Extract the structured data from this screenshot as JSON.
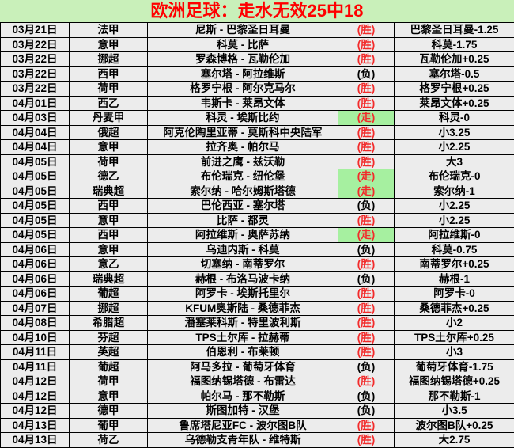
{
  "title": "欧洲足球：走水无效25中18",
  "colors": {
    "title_bg": "#c9f0ba",
    "title_text": "#ff0000",
    "row_bg": "#ececec",
    "push_bg": "#a6f0a0",
    "result_win": "#f22b2b",
    "result_lose": "#000000",
    "border": "#000000"
  },
  "table": {
    "rows": [
      {
        "date": "03月21日",
        "league": "法甲",
        "match": "尼斯 - 巴黎圣日耳曼",
        "result": "(胜)",
        "status": "win",
        "pick": "巴黎圣日耳曼-1.25"
      },
      {
        "date": "03月22日",
        "league": "意甲",
        "match": "科莫 - 比萨",
        "result": "(胜)",
        "status": "win",
        "pick": "科莫-1.75"
      },
      {
        "date": "03月22日",
        "league": "挪超",
        "match": "罗森博格 - 瓦勒伦加",
        "result": "(胜)",
        "status": "win",
        "pick": "瓦勒伦加+0.25"
      },
      {
        "date": "03月22日",
        "league": "西甲",
        "match": "塞尔塔 - 阿拉维斯",
        "result": "(负)",
        "status": "lose",
        "pick": "塞尔塔-0.5"
      },
      {
        "date": "03月22日",
        "league": "荷甲",
        "match": "格罗宁根 - 阿尔克马尔",
        "result": "(胜)",
        "status": "win",
        "pick": "格罗宁根+0.25"
      },
      {
        "date": "04月01日",
        "league": "西乙",
        "match": "韦斯卡 - 莱昂文体",
        "result": "(胜)",
        "status": "win",
        "pick": "莱昂文体+0.25"
      },
      {
        "date": "04月03日",
        "league": "丹麦甲",
        "match": "科灵 - 埃斯比约",
        "result": "(走)",
        "status": "push",
        "pick": "科灵-0"
      },
      {
        "date": "04月04日",
        "league": "俄超",
        "match": "阿克伦陶里亚蒂 - 莫斯科中央陆军",
        "result": "(胜)",
        "status": "win",
        "pick": "小3.25"
      },
      {
        "date": "04月04日",
        "league": "意甲",
        "match": "拉齐奥 - 帕尔马",
        "result": "(胜)",
        "status": "win",
        "pick": "小2.25"
      },
      {
        "date": "04月05日",
        "league": "荷甲",
        "match": "前进之鹰 - 兹沃勒",
        "result": "(胜)",
        "status": "win",
        "pick": "大3"
      },
      {
        "date": "04月05日",
        "league": "德乙",
        "match": "布伦瑞克 - 纽伦堡",
        "result": "(走)",
        "status": "push",
        "pick": "布伦瑞克-0"
      },
      {
        "date": "04月05日",
        "league": "瑞典超",
        "match": "索尔纳 - 哈尔姆斯塔德",
        "result": "(走)",
        "status": "push",
        "pick": "索尔纳-1"
      },
      {
        "date": "04月05日",
        "league": "西甲",
        "match": "巴伦西亚 - 塞尔塔",
        "result": "(负)",
        "status": "lose",
        "pick": "小2.25"
      },
      {
        "date": "04月05日",
        "league": "意甲",
        "match": "比萨 - 都灵",
        "result": "(胜)",
        "status": "win",
        "pick": "小2.25"
      },
      {
        "date": "04月05日",
        "league": "西甲",
        "match": "阿拉维斯 - 奥萨苏纳",
        "result": "(走)",
        "status": "push",
        "pick": "阿拉维斯-0"
      },
      {
        "date": "04月06日",
        "league": "意甲",
        "match": "乌迪内斯 - 科莫",
        "result": "(负)",
        "status": "lose",
        "pick": "科莫-0.75"
      },
      {
        "date": "04月06日",
        "league": "意乙",
        "match": "切塞纳 - 南蒂罗尔",
        "result": "(胜)",
        "status": "win",
        "pick": "南蒂罗尔+0.25"
      },
      {
        "date": "04月06日",
        "league": "瑞典超",
        "match": "赫根 - 布洛马波卡纳",
        "result": "(负)",
        "status": "lose",
        "pick": "赫根-1"
      },
      {
        "date": "04月06日",
        "league": "葡超",
        "match": "阿罗卡 - 埃斯托里尔",
        "result": "(胜)",
        "status": "win",
        "pick": "阿罗卡-0"
      },
      {
        "date": "04月07日",
        "league": "挪超",
        "match": "KFUM奥斯陆 - 桑德菲杰",
        "result": "(胜)",
        "status": "win",
        "pick": "桑德菲杰+0.25"
      },
      {
        "date": "04月08日",
        "league": "希腊超",
        "match": "潘塞莱科斯 - 特里波利斯",
        "result": "(胜)",
        "status": "win",
        "pick": "小2"
      },
      {
        "date": "04月10日",
        "league": "芬超",
        "match": "TPS土尔库 - 拉赫蒂",
        "result": "(胜)",
        "status": "win",
        "pick": "TPS土尔库+0.25"
      },
      {
        "date": "04月11日",
        "league": "英超",
        "match": "伯恩利 - 布莱顿",
        "result": "(胜)",
        "status": "win",
        "pick": "小3"
      },
      {
        "date": "04月11日",
        "league": "葡超",
        "match": "阿马多拉 - 葡萄牙体育",
        "result": "(负)",
        "status": "lose",
        "pick": "葡萄牙体育-1.75"
      },
      {
        "date": "04月12日",
        "league": "荷甲",
        "match": "福图纳锡塔德 - 布雷达",
        "result": "(胜)",
        "status": "win",
        "pick": "福图纳锡塔德+0.25"
      },
      {
        "date": "04月12日",
        "league": "意甲",
        "match": "帕尔马 - 那不勒斯",
        "result": "(负)",
        "status": "lose",
        "pick": "那不勒斯-1"
      },
      {
        "date": "04月12日",
        "league": "德甲",
        "match": "斯图加特 - 汉堡",
        "result": "(负)",
        "status": "lose",
        "pick": "小3.5"
      },
      {
        "date": "04月13日",
        "league": "葡甲",
        "match": "鲁席塔尼亚FC - 波尔图B队",
        "result": "(胜)",
        "status": "win",
        "pick": "波尔图B队+0.25"
      },
      {
        "date": "04月13日",
        "league": "荷乙",
        "match": "乌德勒支青年队 - 维特斯",
        "result": "(胜)",
        "status": "win",
        "pick": "大2.75"
      }
    ]
  }
}
